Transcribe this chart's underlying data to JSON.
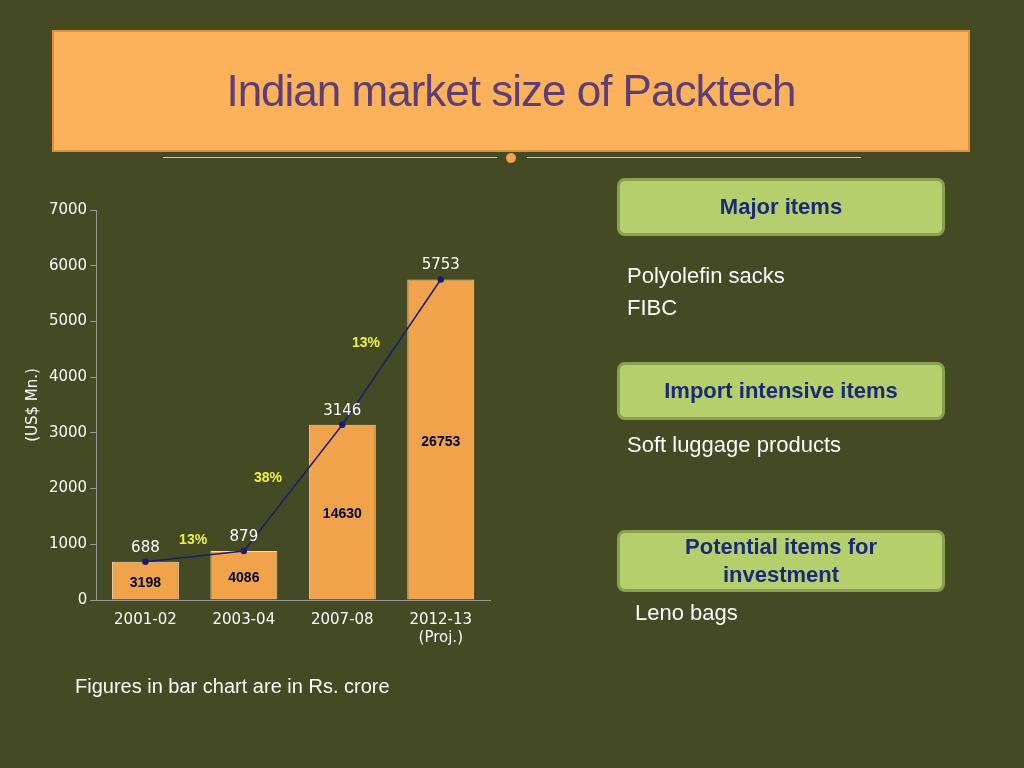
{
  "chart_data": [
    {
      "type": "bar",
      "title": "Indian market size of Packtech",
      "ylabel": "(US$ Mn.)",
      "categories": [
        "2001-02",
        "2003-04",
        "2007-08",
        "2012-13 (Proj.)"
      ],
      "series": [
        {
          "type": "bar",
          "color": "#f0a34a",
          "values": [
            688,
            879,
            3146,
            5753
          ]
        },
        {
          "type": "line",
          "color": "#1c1c6e",
          "values": [
            688,
            879,
            3146,
            5753
          ],
          "value_labels": [
            "688",
            "879",
            "3146",
            "5753"
          ]
        }
      ],
      "ylim": [
        0,
        7000
      ],
      "yticks": [
        0,
        1000,
        2000,
        3000,
        4000,
        5000,
        6000,
        7000
      ],
      "grid": false,
      "legend": false,
      "marker": "circle",
      "annotations": [
        "3198",
        "4086",
        "14630",
        "26753",
        "13%",
        "38%",
        "13%",
        "Figures in bar chart  are in Rs. crore"
      ]
    },
    {
      "type": "other",
      "annotations": [
        "Major items",
        "Polyolefin sacks",
        "FIBC",
        "Import intensive items",
        "Soft luggage products",
        "Potential items for investment",
        "Leno bags"
      ]
    }
  ]
}
